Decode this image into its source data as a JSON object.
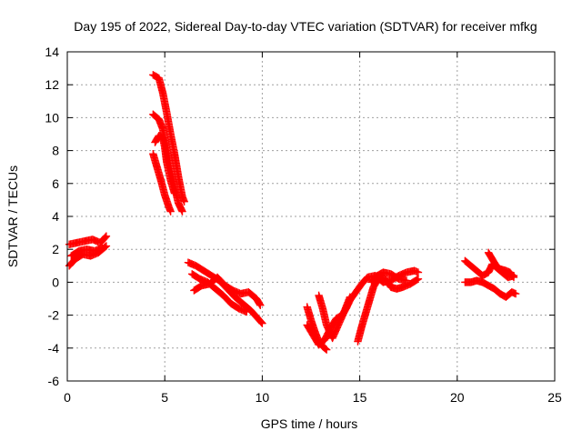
{
  "chart_data": {
    "type": "scatter",
    "title": "Day 195 of 2022, Sidereal Day-to-day VTEC variation (SDTVAR) for receiver mfkg",
    "xlabel": "GPS time / hours",
    "ylabel": "SDTVAR / TECUs",
    "xlim": [
      0,
      25
    ],
    "ylim": [
      -6,
      14
    ],
    "x_ticks": [
      0,
      5,
      10,
      15,
      20,
      25
    ],
    "y_ticks": [
      -6,
      -4,
      -2,
      0,
      2,
      4,
      6,
      8,
      10,
      12,
      14
    ],
    "grid": true,
    "marker": "plus",
    "color": "#ff0000",
    "series": [
      {
        "name": "mfkg",
        "tracks": [
          [
            [
              0.1,
              2.3
            ],
            [
              0.5,
              2.4
            ],
            [
              0.9,
              2.5
            ],
            [
              1.3,
              2.6
            ],
            [
              1.7,
              2.4
            ],
            [
              2.0,
              2.8
            ]
          ],
          [
            [
              0.1,
              1.0
            ],
            [
              0.4,
              1.4
            ],
            [
              0.8,
              1.7
            ],
            [
              1.2,
              1.6
            ],
            [
              1.6,
              1.8
            ],
            [
              2.0,
              2.2
            ]
          ],
          [
            [
              0.2,
              1.6
            ],
            [
              0.6,
              1.9
            ],
            [
              1.0,
              2.0
            ],
            [
              1.4,
              1.9
            ],
            [
              1.8,
              2.1
            ]
          ],
          [
            [
              4.4,
              12.6
            ],
            [
              4.7,
              12.4
            ],
            [
              4.9,
              11.5
            ],
            [
              5.1,
              10.3
            ],
            [
              5.3,
              9.0
            ],
            [
              5.5,
              7.8
            ],
            [
              5.7,
              6.4
            ],
            [
              5.9,
              5.2
            ],
            [
              6.0,
              4.9
            ]
          ],
          [
            [
              4.4,
              10.2
            ],
            [
              4.7,
              9.9
            ],
            [
              4.9,
              9.3
            ],
            [
              5.1,
              8.0
            ],
            [
              5.3,
              6.9
            ],
            [
              5.5,
              5.8
            ],
            [
              5.7,
              4.8
            ],
            [
              5.9,
              4.3
            ]
          ],
          [
            [
              4.5,
              8.5
            ],
            [
              4.7,
              8.9
            ],
            [
              4.9,
              8.8
            ],
            [
              5.0,
              8.2
            ],
            [
              5.1,
              7.3
            ],
            [
              5.3,
              6.2
            ],
            [
              5.5,
              5.4
            ]
          ],
          [
            [
              4.4,
              7.8
            ],
            [
              4.6,
              7.0
            ],
            [
              4.8,
              6.2
            ],
            [
              5.0,
              5.3
            ],
            [
              5.2,
              4.6
            ],
            [
              5.3,
              4.3
            ]
          ],
          [
            [
              6.2,
              1.2
            ],
            [
              6.6,
              1.0
            ],
            [
              7.0,
              0.7
            ],
            [
              7.4,
              0.4
            ],
            [
              7.8,
              0.1
            ],
            [
              8.2,
              -0.4
            ],
            [
              8.6,
              -0.9
            ],
            [
              9.0,
              -1.3
            ],
            [
              9.4,
              -1.7
            ],
            [
              9.7,
              -2.1
            ],
            [
              10.0,
              -2.5
            ]
          ],
          [
            [
              6.4,
              0.5
            ],
            [
              6.8,
              0.2
            ],
            [
              7.2,
              0.0
            ],
            [
              7.6,
              -0.4
            ],
            [
              8.0,
              -0.8
            ],
            [
              8.4,
              -1.3
            ],
            [
              8.8,
              -1.6
            ],
            [
              9.2,
              -1.8
            ]
          ],
          [
            [
              6.5,
              -0.5
            ],
            [
              6.9,
              -0.2
            ],
            [
              7.3,
              -0.1
            ],
            [
              7.7,
              0.3
            ],
            [
              8.1,
              -0.2
            ],
            [
              8.5,
              -0.5
            ],
            [
              8.9,
              -0.7
            ],
            [
              9.3,
              -0.6
            ],
            [
              9.7,
              -1.0
            ],
            [
              9.9,
              -1.4
            ]
          ],
          [
            [
              12.3,
              -1.5
            ],
            [
              12.5,
              -2.3
            ],
            [
              12.7,
              -3.0
            ],
            [
              12.9,
              -3.6
            ],
            [
              13.1,
              -3.9
            ],
            [
              13.3,
              -4.1
            ]
          ],
          [
            [
              12.3,
              -2.6
            ],
            [
              12.6,
              -3.2
            ],
            [
              12.9,
              -3.8
            ],
            [
              13.2,
              -3.5
            ],
            [
              13.5,
              -2.8
            ],
            [
              13.8,
              -2.2
            ],
            [
              14.1,
              -2.0
            ],
            [
              14.3,
              -1.6
            ],
            [
              14.5,
              -1.1
            ],
            [
              14.8,
              -0.6
            ],
            [
              15.1,
              -0.1
            ],
            [
              15.4,
              0.3
            ],
            [
              15.8,
              0.4
            ],
            [
              16.2,
              0.0
            ],
            [
              16.6,
              0.1
            ],
            [
              17.0,
              0.4
            ],
            [
              17.4,
              0.6
            ],
            [
              17.8,
              0.7
            ],
            [
              18.0,
              0.6
            ]
          ],
          [
            [
              12.9,
              -0.8
            ],
            [
              13.1,
              -1.6
            ],
            [
              13.3,
              -2.6
            ],
            [
              13.6,
              -3.4
            ],
            [
              13.9,
              -2.6
            ],
            [
              14.2,
              -1.8
            ],
            [
              14.5,
              -0.9
            ]
          ],
          [
            [
              14.9,
              -3.6
            ],
            [
              15.1,
              -2.7
            ],
            [
              15.3,
              -1.9
            ],
            [
              15.5,
              -1.1
            ],
            [
              15.7,
              -0.3
            ],
            [
              16.0,
              0.3
            ],
            [
              16.3,
              0.2
            ],
            [
              16.6,
              -0.3
            ],
            [
              16.9,
              -0.4
            ],
            [
              17.2,
              -0.3
            ],
            [
              17.6,
              -0.1
            ],
            [
              18.0,
              0.2
            ]
          ],
          [
            [
              15.6,
              0.0
            ],
            [
              15.9,
              0.4
            ],
            [
              16.2,
              0.6
            ],
            [
              16.6,
              0.5
            ],
            [
              17.0,
              0.2
            ],
            [
              17.4,
              0.1
            ]
          ],
          [
            [
              20.4,
              1.3
            ],
            [
              20.7,
              1.0
            ],
            [
              21.0,
              0.7
            ],
            [
              21.3,
              0.4
            ],
            [
              21.6,
              0.6
            ],
            [
              21.8,
              1.1
            ],
            [
              22.0,
              0.9
            ],
            [
              22.3,
              0.6
            ],
            [
              22.6,
              0.3
            ],
            [
              22.9,
              0.4
            ]
          ],
          [
            [
              20.4,
              0.0
            ],
            [
              20.7,
              0.0
            ],
            [
              21.0,
              0.1
            ],
            [
              21.3,
              0.0
            ],
            [
              21.6,
              -0.2
            ],
            [
              21.9,
              -0.4
            ],
            [
              22.2,
              -0.7
            ],
            [
              22.5,
              -0.9
            ],
            [
              22.8,
              -0.6
            ],
            [
              23.0,
              -0.7
            ]
          ],
          [
            [
              21.6,
              1.8
            ],
            [
              21.8,
              1.4
            ],
            [
              22.0,
              1.0
            ],
            [
              22.2,
              0.8
            ],
            [
              22.5,
              0.7
            ],
            [
              22.7,
              0.6
            ],
            [
              22.9,
              0.3
            ]
          ]
        ]
      }
    ]
  }
}
